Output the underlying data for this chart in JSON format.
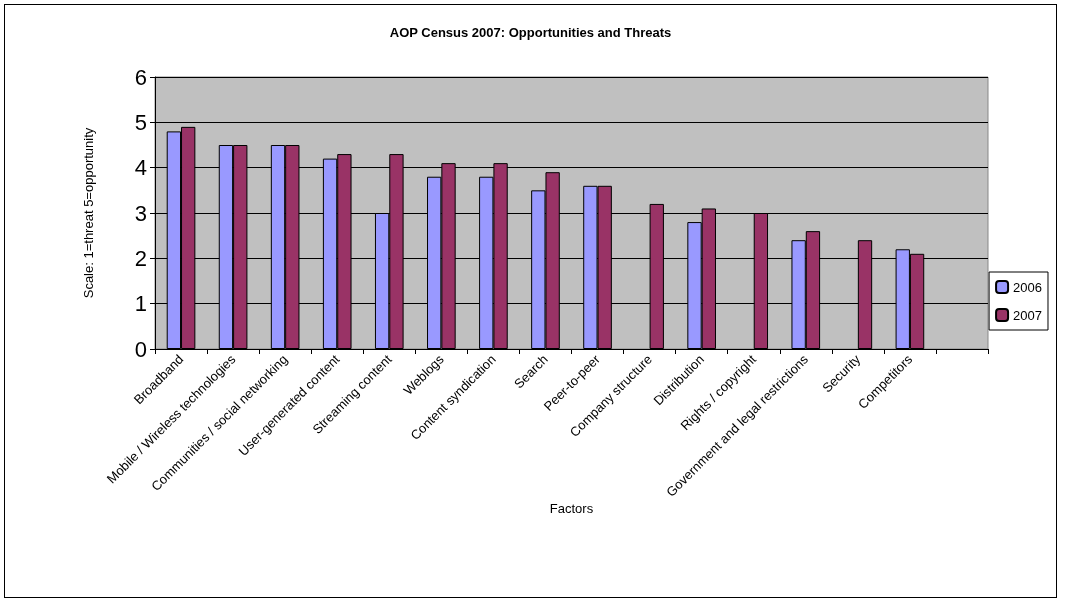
{
  "chart_data": {
    "type": "bar",
    "title": "AOP Census 2007: Opportunities and Threats",
    "xlabel": "Factors",
    "ylabel": "Scale: 1=threat 5=opportunity",
    "categories": [
      "Broadband",
      "Mobile / Wireless technologies",
      "Communities / social networking",
      "User-generated content",
      "Streaming content",
      "Weblogs",
      "Content syndication",
      "Search",
      "Peer-to-peer",
      "Company structure",
      "Distribution",
      "Rights / copyright",
      "Government and legal restrictions",
      "Security",
      "Competitors",
      null
    ],
    "series": [
      {
        "name": "2006",
        "color": "#9999ff",
        "values": [
          4.8,
          4.5,
          4.5,
          4.2,
          3.0,
          3.8,
          3.8,
          3.5,
          3.6,
          null,
          2.8,
          null,
          2.4,
          null,
          2.2,
          null
        ]
      },
      {
        "name": "2007",
        "color": "#993366",
        "values": [
          4.9,
          4.5,
          4.5,
          4.3,
          4.3,
          4.1,
          4.1,
          3.9,
          3.6,
          3.2,
          3.1,
          3.0,
          2.6,
          2.4,
          2.1,
          null
        ]
      }
    ],
    "ylim": [
      0,
      6
    ],
    "yticks": [
      0,
      1,
      2,
      3,
      4,
      5,
      6
    ],
    "grid": "y",
    "legend": "right"
  }
}
